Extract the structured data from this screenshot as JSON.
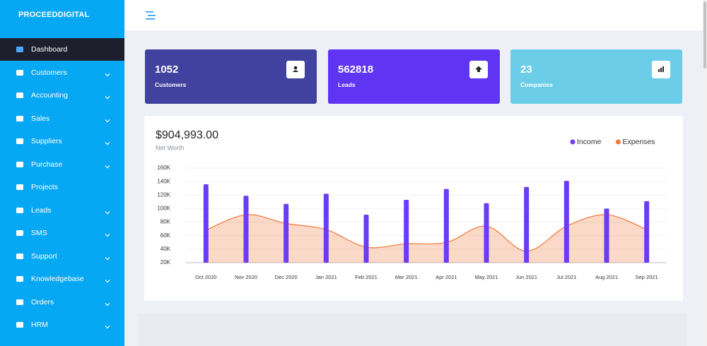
{
  "sidebar": {
    "brand": "PROCEEDDIGITAL",
    "items": [
      {
        "label": "Dashboard",
        "active": true
      },
      {
        "label": "Customers",
        "expandable": true
      },
      {
        "label": "Accounting",
        "expandable": true
      },
      {
        "label": "Sales",
        "expandable": true
      },
      {
        "label": "Suppliers",
        "expandable": true
      },
      {
        "label": "Purchase",
        "expandable": true
      },
      {
        "label": "Projects"
      },
      {
        "label": "Leads",
        "expandable": true
      },
      {
        "label": "SMS",
        "expandable": true
      },
      {
        "label": "Support",
        "expandable": true
      },
      {
        "label": "Knowledgebase",
        "expandable": true
      },
      {
        "label": "Orders",
        "expandable": true
      },
      {
        "label": "HRM",
        "expandable": true
      }
    ]
  },
  "cards": [
    {
      "value": 1052,
      "label": "Customers",
      "color": "#4141a0"
    },
    {
      "value": 562818,
      "label": "Leads",
      "color": "#5f35f3"
    },
    {
      "value": 23,
      "label": "Companies",
      "color": "#6ccde8"
    }
  ],
  "chart_data": {
    "type": "bar",
    "title": "$904,993.00",
    "subtitle": "Net Worth",
    "legend": "top-right",
    "grid": true,
    "categories": [
      "Oct 2020",
      "Nov 2020",
      "Dec 2020",
      "Jan 2021",
      "Feb 2021",
      "Mar 2021",
      "Apr 2021",
      "May 2021",
      "Jun 2021",
      "Jul 2021",
      "Aug 2021",
      "Sep 2021"
    ],
    "series": [
      {
        "name": "Income",
        "type": "bar",
        "color": "#6a3cf4",
        "values": [
          136000,
          119000,
          107000,
          122000,
          91000,
          113000,
          129000,
          108000,
          132000,
          141000,
          100000,
          111000
        ]
      },
      {
        "name": "Expenses",
        "type": "area",
        "color": "#f0773a",
        "values": [
          68000,
          91000,
          78000,
          69000,
          43000,
          48000,
          50000,
          74000,
          37000,
          74000,
          91000,
          69000
        ]
      }
    ],
    "ylim": [
      20000,
      160000
    ],
    "yticks": [
      {
        "value": 20000,
        "label": "20K"
      },
      {
        "value": 40000,
        "label": "40K"
      },
      {
        "value": 60000,
        "label": "60K"
      },
      {
        "value": 80000,
        "label": "80K"
      },
      {
        "value": 100000,
        "label": "100K"
      },
      {
        "value": 120000,
        "label": "120K"
      },
      {
        "value": 140000,
        "label": "140K"
      },
      {
        "value": 160000,
        "label": "160K"
      }
    ]
  }
}
